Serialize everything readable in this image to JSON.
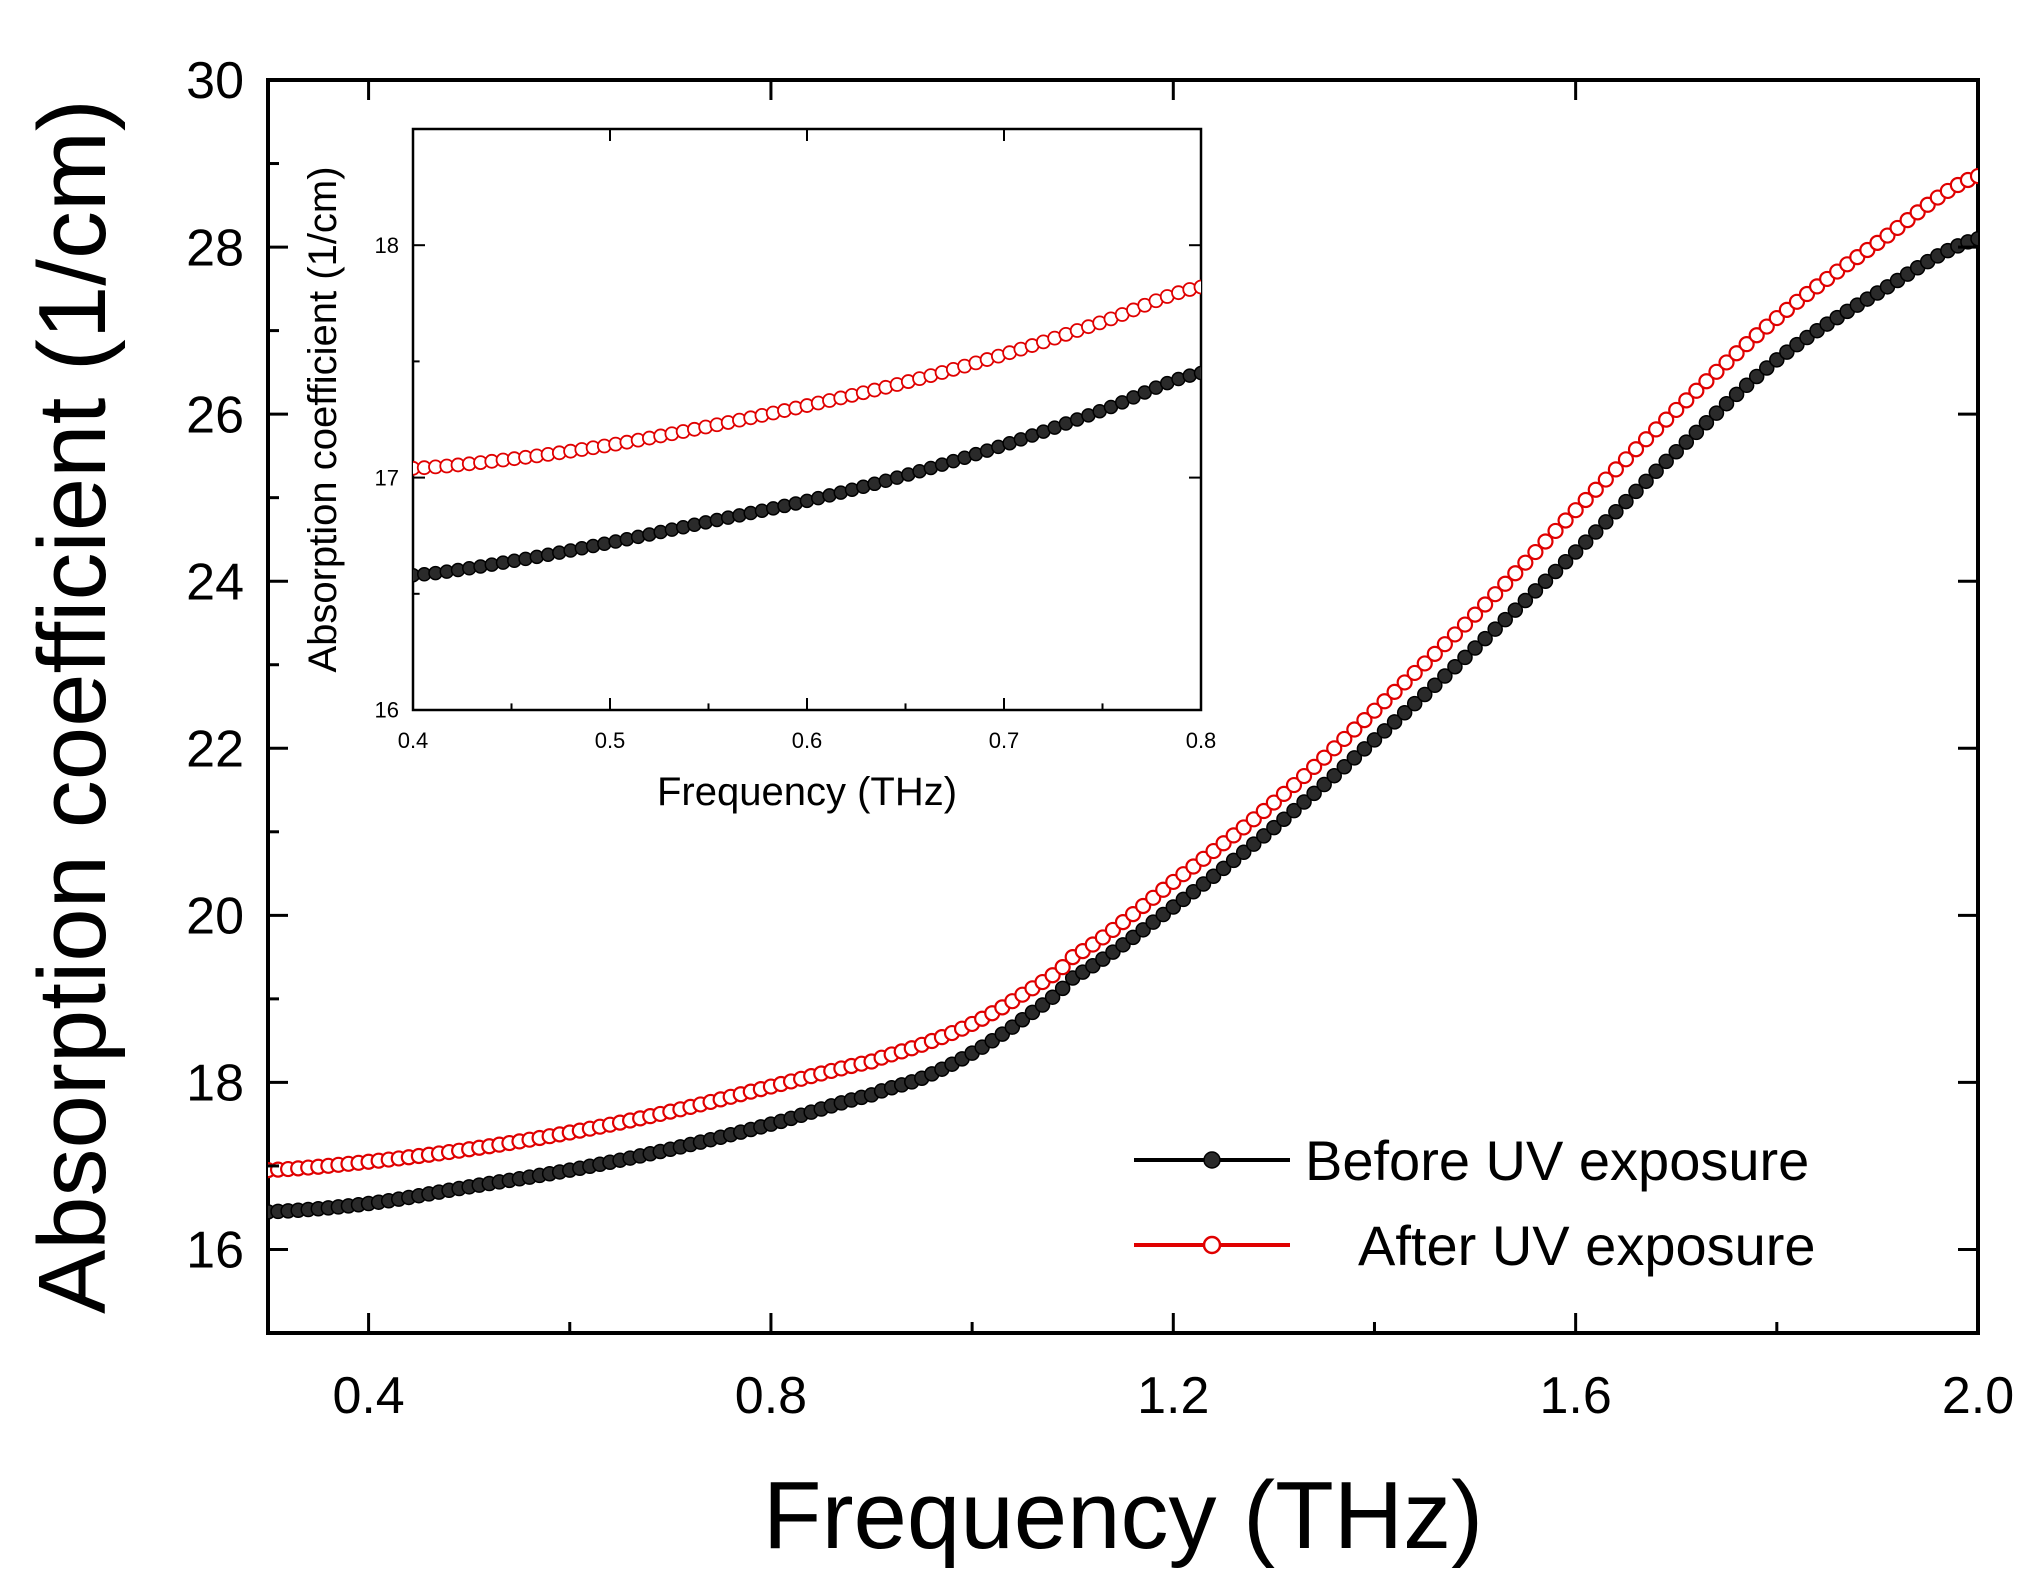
{
  "chart_data": [
    {
      "id": "main",
      "type": "scatter",
      "xlabel": "Frequency (THz)",
      "ylabel": "Absorption coefficient (1/cm)",
      "xlim": [
        0.3,
        2.0
      ],
      "ylim": [
        15.0,
        30.0
      ],
      "xticks": [
        0.4,
        0.8,
        1.2,
        1.6,
        2.0
      ],
      "xtick_labels": [
        "0.4",
        "0.8",
        "1.2",
        "1.6",
        "2.0"
      ],
      "yticks": [
        16,
        18,
        20,
        22,
        24,
        26,
        28,
        30
      ],
      "ytick_labels": [
        "16",
        "18",
        "20",
        "22",
        "24",
        "26",
        "28",
        "30"
      ],
      "legend_position": "bottom-right",
      "series": [
        {
          "name": "Before UV exposure",
          "color": "#000000",
          "marker": "filled-circle",
          "x": [
            0.3,
            0.4,
            0.5,
            0.6,
            0.7,
            0.8,
            0.9,
            0.95,
            1.0,
            1.05,
            1.1,
            1.2,
            1.3,
            1.4,
            1.5,
            1.6,
            1.7,
            1.8,
            1.9,
            2.0
          ],
          "y": [
            16.45,
            16.55,
            16.75,
            16.95,
            17.2,
            17.5,
            17.85,
            18.05,
            18.35,
            18.75,
            19.25,
            20.1,
            21.05,
            22.1,
            23.2,
            24.35,
            25.55,
            26.65,
            27.45,
            28.1
          ]
        },
        {
          "name": "After UV exposure",
          "color": "#e00000",
          "marker": "open-circle",
          "x": [
            0.3,
            0.4,
            0.5,
            0.6,
            0.7,
            0.8,
            0.9,
            0.95,
            1.0,
            1.05,
            1.1,
            1.2,
            1.3,
            1.4,
            1.5,
            1.6,
            1.7,
            1.8,
            1.9,
            2.0
          ],
          "y": [
            16.95,
            17.05,
            17.2,
            17.4,
            17.65,
            17.95,
            18.25,
            18.45,
            18.7,
            19.05,
            19.5,
            20.4,
            21.35,
            22.45,
            23.6,
            24.85,
            26.05,
            27.15,
            28.05,
            28.85
          ]
        }
      ]
    },
    {
      "id": "inset",
      "type": "scatter",
      "xlabel": "Frequency (THz)",
      "ylabel": "Absorption coefficient (1/cm)",
      "xlim": [
        0.4,
        0.8
      ],
      "ylim": [
        16.0,
        18.5
      ],
      "xticks": [
        0.4,
        0.5,
        0.6,
        0.7,
        0.8
      ],
      "xtick_labels": [
        "0.4",
        "0.5",
        "0.6",
        "0.7",
        "0.8"
      ],
      "yticks": [
        16,
        17,
        18
      ],
      "ytick_labels": [
        "16",
        "17",
        "18"
      ],
      "series": [
        {
          "name": "Before UV exposure",
          "color": "#000000",
          "marker": "filled-circle",
          "x": [
            0.4,
            0.45,
            0.5,
            0.55,
            0.6,
            0.65,
            0.7,
            0.75,
            0.8
          ],
          "y": [
            16.58,
            16.64,
            16.72,
            16.81,
            16.9,
            17.01,
            17.14,
            17.29,
            17.45
          ]
        },
        {
          "name": "After UV exposure",
          "color": "#e00000",
          "marker": "open-circle",
          "x": [
            0.4,
            0.45,
            0.5,
            0.55,
            0.6,
            0.65,
            0.7,
            0.75,
            0.8
          ],
          "y": [
            17.04,
            17.08,
            17.14,
            17.22,
            17.31,
            17.41,
            17.53,
            17.67,
            17.82
          ]
        }
      ]
    }
  ]
}
